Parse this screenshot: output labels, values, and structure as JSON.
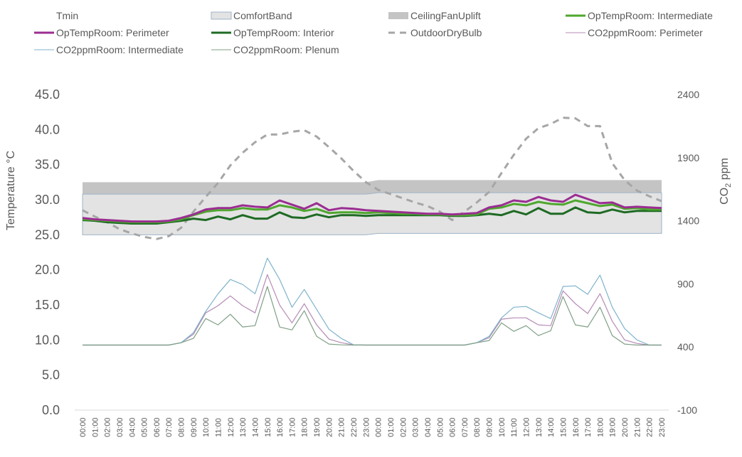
{
  "chart_data": {
    "type": "line",
    "title": "",
    "xlabel": "",
    "ylabel": "Temperature °C",
    "y2label": "CO2 ppm",
    "ylim": [
      0,
      45
    ],
    "y2lim": [
      -100,
      2400
    ],
    "yticks": [
      "0.0",
      "5.0",
      "10.0",
      "15.0",
      "20.0",
      "25.0",
      "30.0",
      "35.0",
      "40.0",
      "45.0"
    ],
    "y2ticks": [
      "-100",
      "400",
      "900",
      "1400",
      "1900",
      "2400"
    ],
    "grid": false,
    "legend_position": "top",
    "x": [
      "00:00",
      "01:00",
      "02:00",
      "03:00",
      "04:00",
      "05:00",
      "06:00",
      "07:00",
      "08:00",
      "09:00",
      "10:00",
      "11:00",
      "12:00",
      "13:00",
      "14:00",
      "15:00",
      "16:00",
      "17:00",
      "18:00",
      "19:00",
      "20:00",
      "21:00",
      "22:00",
      "23:00",
      "00:00",
      "01:00",
      "02:00",
      "03:00",
      "04:00",
      "05:00",
      "06:00",
      "07:00",
      "08:00",
      "09:00",
      "10:00",
      "11:00",
      "12:00",
      "13:00",
      "14:00",
      "15:00",
      "16:00",
      "17:00",
      "18:00",
      "19:00",
      "20:00",
      "21:00",
      "22:00",
      "23:00"
    ],
    "bands": {
      "Tmin": [
        25.0,
        25.0,
        25.0,
        25.0,
        25.0,
        25.0,
        25.0,
        25.0,
        25.0,
        25.0,
        25.0,
        25.0,
        25.0,
        25.0,
        25.0,
        25.0,
        25.0,
        25.0,
        25.0,
        25.0,
        25.0,
        25.0,
        25.0,
        25.0,
        25.2,
        25.2,
        25.2,
        25.2,
        25.2,
        25.2,
        25.2,
        25.2,
        25.2,
        25.2,
        25.2,
        25.2,
        25.2,
        25.2,
        25.2,
        25.2,
        25.2,
        25.2,
        25.2,
        25.2,
        25.2,
        25.2,
        25.2,
        25.2
      ],
      "ComfortBandTop": [
        30.8,
        30.8,
        30.8,
        30.8,
        30.8,
        30.8,
        30.8,
        30.8,
        30.8,
        30.8,
        30.8,
        30.8,
        30.8,
        30.8,
        30.8,
        30.8,
        30.8,
        30.8,
        30.8,
        30.8,
        30.8,
        30.8,
        30.8,
        30.8,
        31.0,
        31.0,
        31.0,
        31.0,
        31.0,
        31.0,
        31.0,
        31.0,
        31.0,
        31.0,
        31.0,
        31.0,
        31.0,
        31.0,
        31.0,
        31.0,
        31.0,
        31.0,
        31.0,
        31.0,
        31.0,
        31.0,
        31.0,
        31.0
      ],
      "CeilingFanUpliftTop": [
        32.5,
        32.5,
        32.5,
        32.5,
        32.5,
        32.5,
        32.5,
        32.5,
        32.5,
        32.5,
        32.5,
        32.5,
        32.5,
        32.5,
        32.5,
        32.5,
        32.5,
        32.5,
        32.5,
        32.5,
        32.5,
        32.5,
        32.5,
        32.5,
        32.8,
        32.8,
        32.8,
        32.8,
        32.8,
        32.8,
        32.8,
        32.8,
        32.8,
        32.8,
        32.8,
        32.8,
        32.8,
        32.8,
        32.8,
        32.8,
        32.8,
        32.8,
        32.8,
        32.8,
        32.8,
        32.8,
        32.8,
        32.8
      ]
    },
    "series": [
      {
        "name": "OpTempRoom: Perimeter",
        "axis": "left",
        "color": "#9B2D92",
        "style": "solid-thick",
        "values": [
          27.4,
          27.2,
          27.1,
          27.0,
          26.9,
          26.9,
          26.9,
          27.0,
          27.4,
          27.9,
          28.6,
          28.8,
          28.8,
          29.2,
          29.0,
          28.9,
          29.9,
          29.3,
          28.7,
          29.5,
          28.5,
          28.8,
          28.7,
          28.5,
          28.4,
          28.3,
          28.2,
          28.1,
          28.0,
          28.0,
          27.9,
          28.0,
          28.1,
          28.9,
          29.2,
          29.9,
          29.7,
          30.4,
          29.9,
          29.7,
          30.7,
          30.1,
          29.5,
          29.6,
          28.9,
          29.0,
          28.9,
          28.8
        ]
      },
      {
        "name": "OpTempRoom: Intermediate",
        "axis": "left",
        "color": "#4EA72E",
        "style": "solid-thick",
        "values": [
          27.2,
          27.1,
          27.0,
          26.9,
          26.8,
          26.8,
          26.8,
          26.9,
          27.2,
          27.8,
          28.3,
          28.5,
          28.5,
          28.8,
          28.6,
          28.6,
          29.2,
          28.9,
          28.4,
          28.7,
          28.1,
          28.2,
          28.2,
          28.1,
          28.2,
          28.1,
          28.0,
          28.0,
          27.9,
          27.9,
          27.8,
          27.8,
          27.9,
          28.7,
          28.9,
          29.4,
          29.2,
          29.7,
          29.4,
          29.3,
          29.9,
          29.5,
          29.1,
          29.3,
          28.7,
          28.8,
          28.6,
          28.6
        ]
      },
      {
        "name": "OpTempRoom: Interior",
        "axis": "left",
        "color": "#1E6B24",
        "style": "solid-thick",
        "values": [
          27.1,
          27.0,
          26.8,
          26.7,
          26.6,
          26.6,
          26.6,
          26.8,
          27.0,
          27.3,
          27.1,
          27.6,
          27.2,
          27.8,
          27.3,
          27.3,
          28.2,
          27.5,
          27.4,
          27.9,
          27.5,
          27.8,
          27.8,
          27.7,
          27.8,
          27.8,
          27.8,
          27.8,
          27.8,
          27.8,
          27.7,
          27.7,
          27.8,
          28.0,
          27.8,
          28.4,
          27.9,
          28.8,
          28.0,
          28.0,
          28.9,
          28.2,
          28.1,
          28.6,
          28.2,
          28.4,
          28.4,
          28.4
        ]
      },
      {
        "name": "OutdoorDryBulb",
        "axis": "left",
        "color": "#A6A6A6",
        "style": "dashed",
        "values": [
          28.5,
          27.6,
          26.8,
          25.8,
          25.2,
          24.7,
          24.4,
          24.8,
          26.0,
          28.3,
          30.4,
          32.4,
          34.9,
          36.7,
          38.2,
          39.3,
          39.3,
          39.7,
          39.9,
          39.0,
          37.5,
          35.9,
          34.1,
          32.5,
          31.4,
          30.8,
          30.2,
          29.6,
          29.1,
          28.3,
          27.1,
          28.3,
          29.6,
          31.1,
          33.8,
          36.4,
          38.7,
          40.2,
          40.8,
          41.7,
          41.6,
          40.5,
          40.5,
          35.2,
          32.8,
          31.3,
          30.5,
          29.8
        ]
      },
      {
        "name": "CO2ppmRoom: Perimeter",
        "axis": "right",
        "color": "#B48BB5",
        "style": "solid-thin",
        "values": [
          415,
          415,
          415,
          415,
          415,
          415,
          415,
          415,
          434,
          501,
          670,
          727,
          805,
          727,
          670,
          974,
          732,
          591,
          743,
          575,
          462,
          434,
          417,
          415,
          415,
          415,
          415,
          415,
          415,
          415,
          415,
          415,
          434,
          473,
          620,
          631,
          631,
          575,
          569,
          845,
          743,
          665,
          822,
          603,
          456,
          428,
          415,
          415
        ]
      },
      {
        "name": "CO2ppmRoom: Intermediate",
        "axis": "right",
        "color": "#7FB3CC",
        "style": "solid-thin",
        "values": [
          415,
          415,
          415,
          415,
          415,
          415,
          415,
          415,
          434,
          513,
          682,
          822,
          935,
          895,
          822,
          1104,
          935,
          715,
          856,
          698,
          541,
          468,
          417,
          415,
          415,
          415,
          415,
          415,
          415,
          415,
          415,
          415,
          434,
          484,
          631,
          715,
          721,
          670,
          625,
          879,
          884,
          817,
          969,
          715,
          546,
          456,
          415,
          415
        ]
      },
      {
        "name": "CO2ppmRoom: Plenum",
        "axis": "right",
        "color": "#7F9F86",
        "style": "solid-thin",
        "values": [
          415,
          415,
          415,
          415,
          415,
          415,
          415,
          415,
          434,
          468,
          625,
          575,
          659,
          558,
          569,
          879,
          558,
          535,
          687,
          484,
          423,
          417,
          415,
          415,
          415,
          415,
          415,
          415,
          415,
          415,
          415,
          415,
          434,
          451,
          591,
          524,
          569,
          490,
          529,
          800,
          575,
          558,
          715,
          490,
          423,
          415,
          415,
          415
        ]
      }
    ],
    "legend": [
      {
        "label": "Tmin",
        "swatch": "none",
        "color": ""
      },
      {
        "label": "ComfortBand",
        "swatch": "box",
        "color": "#E3E3E3",
        "border": "#9FB3C8"
      },
      {
        "label": "CeilingFanUplift",
        "swatch": "box",
        "color": "#C4C4C4",
        "border": ""
      },
      {
        "label": "OpTempRoom: Intermediate",
        "swatch": "line-thick",
        "color": "#4EA72E"
      },
      {
        "label": "OpTempRoom: Perimeter",
        "swatch": "line-thick",
        "color": "#9B2D92"
      },
      {
        "label": "OpTempRoom: Interior",
        "swatch": "line-thick",
        "color": "#1E6B24"
      },
      {
        "label": "OutdoorDryBulb",
        "swatch": "dash",
        "color": "#A6A6A6"
      },
      {
        "label": "CO2ppmRoom: Perimeter",
        "swatch": "line-thin",
        "color": "#B48BB5"
      },
      {
        "label": "CO2ppmRoom: Intermediate",
        "swatch": "line-thin",
        "color": "#7FB3CC"
      },
      {
        "label": "CO2ppmRoom: Plenum",
        "swatch": "line-thin",
        "color": "#7F9F86"
      }
    ],
    "colors": {
      "comfort_fill": "#E3E3E3",
      "comfort_border": "#9FB3C8",
      "fan_fill": "#C4C4C4",
      "axis_line": "#D9D9D9"
    }
  }
}
